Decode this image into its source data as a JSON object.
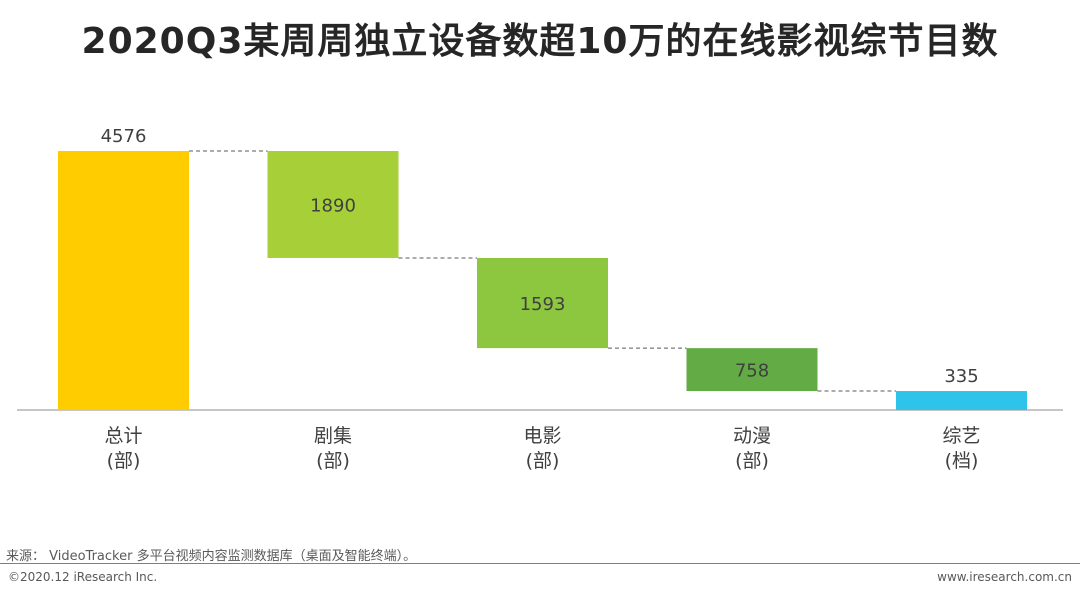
{
  "title": "2020Q3某周周独立设备数超10万的在线影视综节目数",
  "chart_data": {
    "type": "bar",
    "subtype": "waterfall",
    "categories": [
      {
        "line1": "总计",
        "line2": "(部)"
      },
      {
        "line1": "剧集",
        "line2": "(部)"
      },
      {
        "line1": "电影",
        "line2": "(部)"
      },
      {
        "line1": "动漫",
        "line2": "(部)"
      },
      {
        "line1": "综艺",
        "line2": "(档)"
      }
    ],
    "values": [
      4576,
      1890,
      1593,
      758,
      335
    ],
    "is_total": [
      true,
      false,
      false,
      false,
      false
    ],
    "colors": [
      "#FFCC00",
      "#A6CF38",
      "#8DC63F",
      "#63AB44",
      "#2EC4EA"
    ],
    "label_inside": [
      false,
      true,
      true,
      true,
      false
    ],
    "ylim": [
      0,
      4576
    ],
    "connectors": true,
    "grid": false,
    "legend": "none"
  },
  "source": "来源： VideoTracker 多平台视频内容监测数据库（桌面及智能终端）。",
  "copyright": "©2020.12 iResearch Inc.",
  "website": "www.iresearch.com.cn"
}
